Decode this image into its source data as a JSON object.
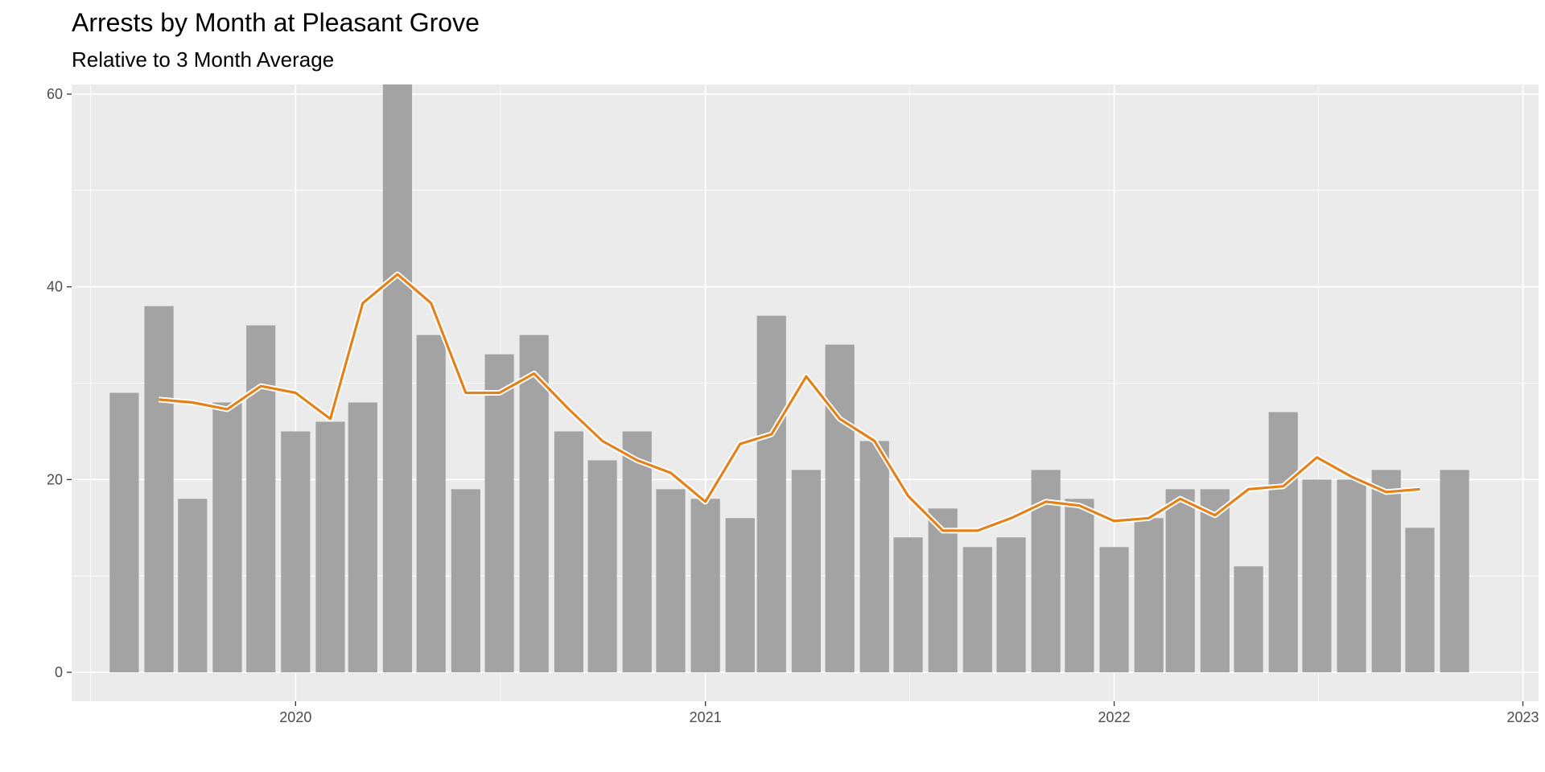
{
  "chart_data": {
    "type": "bar",
    "title": "Arrests by Month at Pleasant Grove",
    "subtitle": "Relative to 3 Month Average",
    "xlabel": "",
    "ylabel": "",
    "ylim": [
      -3,
      61
    ],
    "yticks": [
      0,
      20,
      40,
      60
    ],
    "xlim": [
      "2019-06-15",
      "2023-01-15"
    ],
    "xticks": [
      {
        "date": "2020-01-01",
        "label": "2020"
      },
      {
        "date": "2021-01-01",
        "label": "2021"
      },
      {
        "date": "2022-01-01",
        "label": "2022"
      },
      {
        "date": "2023-01-01",
        "label": "2023"
      }
    ],
    "grid": true,
    "legend": "none",
    "series": [
      {
        "type": "bar",
        "color": "#a3a3a3",
        "x": [
          "2019-08",
          "2019-09",
          "2019-10",
          "2019-11",
          "2019-12",
          "2020-01",
          "2020-02",
          "2020-03",
          "2020-04",
          "2020-05",
          "2020-06",
          "2020-07",
          "2020-08",
          "2020-09",
          "2020-10",
          "2020-11",
          "2020-12",
          "2021-01",
          "2021-02",
          "2021-03",
          "2021-04",
          "2021-05",
          "2021-06",
          "2021-07",
          "2021-08",
          "2021-09",
          "2021-10",
          "2021-11",
          "2021-12",
          "2022-01",
          "2022-02",
          "2022-03",
          "2022-04",
          "2022-05",
          "2022-06",
          "2022-07",
          "2022-08",
          "2022-09",
          "2022-10",
          "2022-11"
        ],
        "values": [
          29,
          38,
          18,
          28,
          36,
          25,
          26,
          28,
          61,
          35,
          19,
          33,
          35,
          25,
          22,
          25,
          19,
          18,
          16,
          37,
          21,
          34,
          24,
          14,
          17,
          13,
          14,
          21,
          18,
          13,
          16,
          19,
          19,
          11,
          27,
          20,
          20,
          21,
          15,
          21
        ]
      },
      {
        "type": "line",
        "color": "#e3821a",
        "outline": "#ffffff",
        "x": [
          "2019-09",
          "2019-10",
          "2019-11",
          "2019-12",
          "2020-01",
          "2020-02",
          "2020-03",
          "2020-04",
          "2020-05",
          "2020-06",
          "2020-07",
          "2020-08",
          "2020-09",
          "2020-10",
          "2020-11",
          "2020-12",
          "2021-01",
          "2021-02",
          "2021-03",
          "2021-04",
          "2021-05",
          "2021-06",
          "2021-07",
          "2021-08",
          "2021-09",
          "2021-10",
          "2021-11",
          "2021-12",
          "2022-01",
          "2022-02",
          "2022-03",
          "2022-04",
          "2022-05",
          "2022-06",
          "2022-07",
          "2022-08",
          "2022-09",
          "2022-10"
        ],
        "values": [
          28.3,
          28.0,
          27.3,
          29.7,
          29.0,
          26.3,
          38.3,
          41.3,
          38.3,
          29.0,
          29.0,
          31.0,
          27.3,
          24.0,
          22.0,
          20.7,
          17.7,
          23.7,
          24.7,
          30.7,
          26.3,
          24.0,
          18.3,
          14.7,
          14.7,
          16.0,
          17.7,
          17.3,
          15.7,
          16.0,
          18.0,
          16.3,
          19.0,
          19.3,
          22.3,
          20.3,
          18.7,
          19.0
        ]
      }
    ]
  }
}
